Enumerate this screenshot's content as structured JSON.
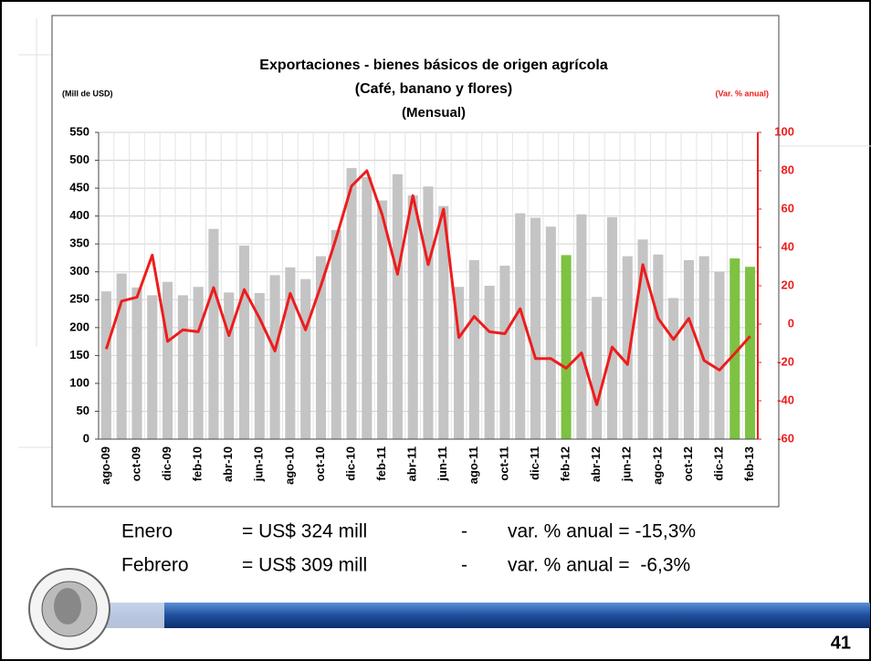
{
  "chart_data": {
    "type": "bar_line",
    "title": [
      "Exportaciones - bienes básicos de origen agrícola",
      "(Café, banano y flores)",
      "(Mensual)"
    ],
    "y_label": "(Mill de USD)",
    "y2_label": "(Var. % anual)",
    "categories": [
      "ago-09",
      null,
      "oct-09",
      null,
      "dic-09",
      null,
      "feb-10",
      null,
      "abr-10",
      null,
      "jun-10",
      null,
      "ago-10",
      null,
      "oct-10",
      null,
      "dic-10",
      null,
      "feb-11",
      null,
      "abr-11",
      null,
      "jun-11",
      null,
      "ago-11",
      null,
      "oct-11",
      null,
      "dic-11",
      null,
      "feb-12",
      null,
      "abr-12",
      null,
      "jun-12",
      null,
      "ago-12",
      null,
      "oct-12",
      null,
      "dic-12",
      null,
      "feb-13"
    ],
    "series": [
      {
        "type": "bar",
        "color": "#c4c4c4",
        "colors": [
          "#c4c4c4",
          "#c4c4c4",
          "#c4c4c4",
          "#c4c4c4",
          "#c4c4c4",
          "#c4c4c4",
          "#c4c4c4",
          "#c4c4c4",
          "#c4c4c4",
          "#c4c4c4",
          "#c4c4c4",
          "#c4c4c4",
          "#c4c4c4",
          "#c4c4c4",
          "#c4c4c4",
          "#c4c4c4",
          "#c4c4c4",
          "#c4c4c4",
          "#c4c4c4",
          "#c4c4c4",
          "#c4c4c4",
          "#c4c4c4",
          "#c4c4c4",
          "#c4c4c4",
          "#c4c4c4",
          "#c4c4c4",
          "#c4c4c4",
          "#c4c4c4",
          "#c4c4c4",
          "#c4c4c4",
          "#7dc242",
          "#c4c4c4",
          "#c4c4c4",
          "#c4c4c4",
          "#c4c4c4",
          "#c4c4c4",
          "#c4c4c4",
          "#c4c4c4",
          "#c4c4c4",
          "#c4c4c4",
          "#c4c4c4",
          "#7dc242",
          "#7dc242"
        ],
        "values": [
          265,
          297,
          272,
          258,
          282,
          258,
          273,
          377,
          263,
          347,
          262,
          294,
          308,
          287,
          328,
          375,
          486,
          470,
          428,
          475,
          437,
          453,
          418,
          273,
          321,
          275,
          311,
          405,
          397,
          381,
          330,
          403,
          255,
          398,
          328,
          358,
          331,
          253,
          321,
          328,
          300,
          324,
          309
        ]
      },
      {
        "type": "line",
        "axis": "y2",
        "color": "#ee1c1c",
        "values": [
          -13,
          12,
          14,
          36,
          -9,
          -3,
          -4,
          19,
          -6,
          18,
          3,
          -14,
          16,
          -3,
          20,
          45,
          72,
          80,
          57,
          26,
          67,
          31,
          60,
          -7,
          4,
          -4,
          -5,
          8,
          -18,
          -18,
          -23,
          -15,
          -42,
          -12,
          -21,
          31,
          3,
          -8,
          3,
          -19,
          -24,
          -15.3,
          -6.3
        ]
      }
    ],
    "ylim": [
      0,
      550
    ],
    "yticks": [
      0,
      50,
      100,
      150,
      200,
      250,
      300,
      350,
      400,
      450,
      500,
      550
    ],
    "y2lim": [
      -60,
      100
    ],
    "y2ticks": [
      -60,
      -40,
      -20,
      0,
      20,
      40,
      60,
      80,
      100
    ],
    "grid": true
  },
  "notes": {
    "rows": [
      [
        "Enero",
        "= US$ 324 mill",
        "-",
        "var. % anual = -15,3%"
      ],
      [
        "Febrero",
        "= US$ 309 mill",
        "-",
        "var. % anual =  -6,3%"
      ]
    ]
  },
  "page_number": "41"
}
